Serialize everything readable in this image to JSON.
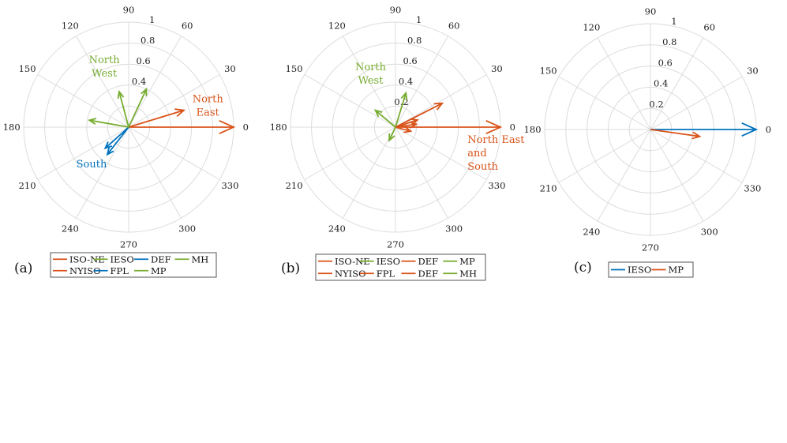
{
  "colors": {
    "orange": "#d95319",
    "green": "#77ac30",
    "blue": "#0072bd",
    "grid": "#dcdcdc",
    "legend_border": "#555555"
  },
  "chart_data": [
    {
      "type": "polar",
      "panel_label": "(a)",
      "angle_ticks": [
        "0",
        "30",
        "60",
        "90",
        "120",
        "150",
        "180",
        "210",
        "240",
        "270",
        "300",
        "330"
      ],
      "radius_ticks": [
        "0.4",
        "0.6",
        "0.8",
        "1"
      ],
      "rlim": [
        0,
        1
      ],
      "series": [
        {
          "name": "ISO-NE",
          "color": "orange",
          "angle": 0,
          "r": 1.0
        },
        {
          "name": "NYISO",
          "color": "orange",
          "angle": 17,
          "r": 0.55
        },
        {
          "name": "IESO",
          "color": "green",
          "angle": 65,
          "r": 0.4
        },
        {
          "name": "FPL",
          "color": "blue",
          "angle": 232,
          "r": 0.33
        },
        {
          "name": "DEF",
          "color": "blue",
          "angle": 222,
          "r": 0.3
        },
        {
          "name": "MP",
          "color": "green",
          "angle": 105,
          "r": 0.35
        },
        {
          "name": "MH",
          "color": "green",
          "angle": 170,
          "r": 0.38
        }
      ],
      "annotations": [
        {
          "lines": [
            "North",
            "West"
          ],
          "color": "green",
          "angle": 112,
          "r": 0.62
        },
        {
          "lines": [
            "North",
            "East"
          ],
          "color": "orange",
          "angle": 15,
          "r": 0.78
        },
        {
          "lines": [
            "South"
          ],
          "color": "blue",
          "angle": 225,
          "r": 0.5
        }
      ],
      "legend": {
        "columns": 4,
        "items": [
          {
            "label": "ISO-NE",
            "color": "orange"
          },
          {
            "label": "IESO",
            "color": "green"
          },
          {
            "label": "DEF",
            "color": "blue"
          },
          {
            "label": "MH",
            "color": "green"
          },
          {
            "label": "NYISO",
            "color": "orange"
          },
          {
            "label": "FPL",
            "color": "blue"
          },
          {
            "label": "MP",
            "color": "green"
          }
        ]
      }
    },
    {
      "type": "polar",
      "panel_label": "(b)",
      "angle_ticks": [
        "0",
        "30",
        "60",
        "90",
        "120",
        "150",
        "180",
        "210",
        "240",
        "270",
        "300",
        "330"
      ],
      "radius_ticks": [
        "0.2",
        "0.4",
        "0.6",
        "0.8",
        "1"
      ],
      "rlim": [
        0,
        1
      ],
      "series": [
        {
          "name": "ISO-NE",
          "color": "orange",
          "angle": 0,
          "r": 1.0
        },
        {
          "name": "NYISO",
          "color": "orange",
          "angle": 27,
          "r": 0.5
        },
        {
          "name": "IESO",
          "color": "green",
          "angle": 73,
          "r": 0.34
        },
        {
          "name": "FPL",
          "color": "orange",
          "angle": 18,
          "r": 0.22
        },
        {
          "name": "DEF",
          "color": "orange",
          "angle": 8,
          "r": 0.2
        },
        {
          "name": "MP",
          "color": "green",
          "angle": 140,
          "r": 0.25
        },
        {
          "name": "DEF",
          "color": "orange",
          "angle": 345,
          "r": 0.15
        },
        {
          "name": "MH",
          "color": "green",
          "angle": 245,
          "r": 0.14
        }
      ],
      "annotations": [
        {
          "lines": [
            "North",
            "West"
          ],
          "color": "green",
          "angle": 115,
          "r": 0.56
        },
        {
          "lines": [
            "North East",
            "and",
            "South"
          ],
          "color": "orange",
          "angle": 340,
          "r": 0.73
        }
      ],
      "legend": {
        "columns": 4,
        "items": [
          {
            "label": "ISO-NE",
            "color": "orange"
          },
          {
            "label": "IESO",
            "color": "green"
          },
          {
            "label": "DEF",
            "color": "orange"
          },
          {
            "label": "MP",
            "color": "green"
          },
          {
            "label": "NYISO",
            "color": "orange"
          },
          {
            "label": "FPL",
            "color": "orange"
          },
          {
            "label": "DEF",
            "color": "orange"
          },
          {
            "label": "MH",
            "color": "green"
          }
        ]
      }
    },
    {
      "type": "polar",
      "panel_label": "(c)",
      "angle_ticks": [
        "0",
        "30",
        "60",
        "90",
        "120",
        "150",
        "180",
        "210",
        "240",
        "270",
        "300",
        "330"
      ],
      "radius_ticks": [
        "0.2",
        "0.4",
        "0.6",
        "0.8",
        "1"
      ],
      "rlim": [
        0,
        1
      ],
      "series": [
        {
          "name": "IESO",
          "color": "blue",
          "angle": 0,
          "r": 1.0
        },
        {
          "name": "MP",
          "color": "orange",
          "angle": 352,
          "r": 0.47
        }
      ],
      "annotations": [],
      "legend": {
        "columns": 2,
        "items": [
          {
            "label": "IESO",
            "color": "blue"
          },
          {
            "label": "MP",
            "color": "orange"
          }
        ]
      }
    }
  ]
}
